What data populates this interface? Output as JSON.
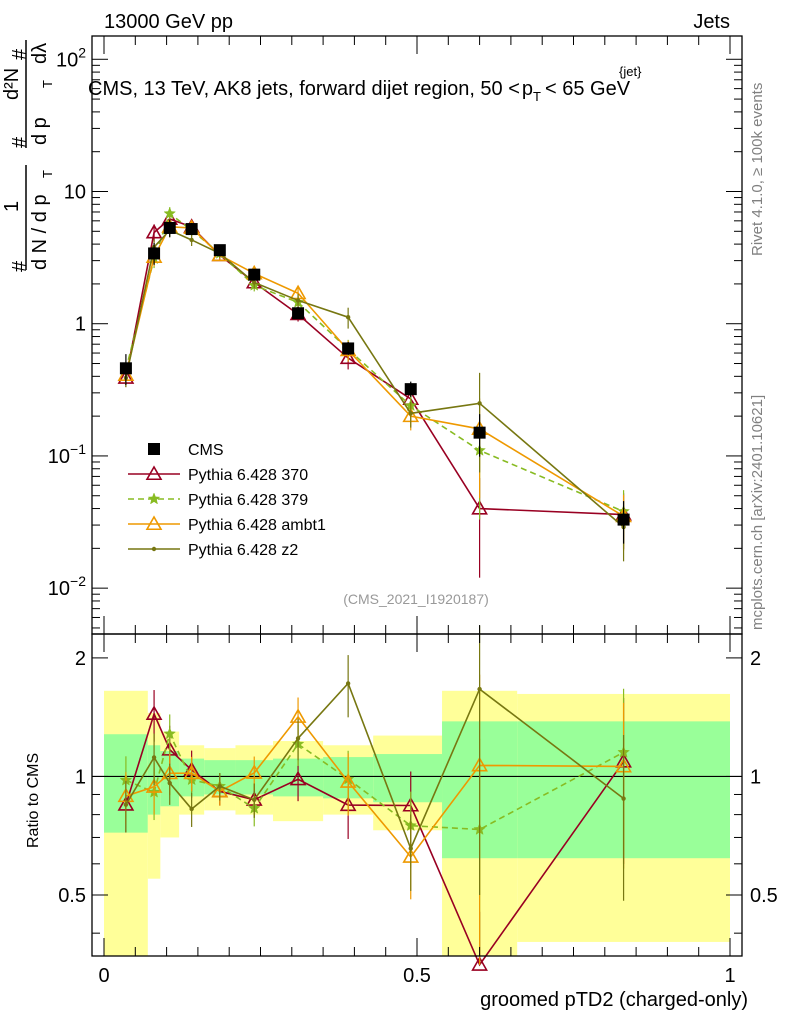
{
  "header": {
    "left": "13000 GeV pp",
    "right": "Jets"
  },
  "side_labels": {
    "rivet": "Rivet 4.1.0, ≥ 100k events",
    "mcplots": "mcplots.cern.ch [arXiv:2401.10621]"
  },
  "chart_data": {
    "type": "line",
    "title_main": "CMS, 13 TeV, AK8 jets, forward dijet region, 50 <",
    "title_p": "p",
    "title_sub": "T",
    "title_sup": "{jet}",
    "title_end": "< 65 GeV",
    "analysis_tag": "(CMS_2021_I1920187)",
    "xlabel": "groomed pTD2 (charged-only)",
    "ylabel_top": {
      "hash1": "#",
      "one": "1",
      "dN": "d N / d p",
      "T": "T",
      "hash2": "#",
      "d2N": "d²N",
      "dpT": "d p",
      "T2": "T",
      "hash3": "#",
      "dlambda": "dλ"
    },
    "ylabel_ratio": "Ratio to CMS",
    "xlim": [
      0,
      1
    ],
    "ylim_top": [
      0.0045,
      150
    ],
    "ylim_ratio": [
      0.35,
      2.3
    ],
    "x_ticks": [
      "0",
      "0.5",
      "1"
    ],
    "y_ticks_top": [
      {
        "v": 0.01,
        "base": "10",
        "exp": "−2"
      },
      {
        "v": 0.1,
        "base": "10",
        "exp": "−1"
      },
      {
        "v": 1,
        "base": "1",
        "exp": ""
      },
      {
        "v": 10,
        "base": "10",
        "exp": ""
      },
      {
        "v": 100,
        "base": "10",
        "exp": "2"
      }
    ],
    "y_ticks_ratio": [
      {
        "v": 0.5,
        "label": "0.5"
      },
      {
        "v": 1,
        "label": "1"
      },
      {
        "v": 2,
        "label": "2"
      }
    ],
    "bin_edges": [
      0,
      0.07,
      0.09,
      0.12,
      0.16,
      0.21,
      0.27,
      0.35,
      0.43,
      0.54,
      0.66,
      1.0
    ],
    "x": [
      0.035,
      0.08,
      0.105,
      0.14,
      0.185,
      0.24,
      0.31,
      0.39,
      0.49,
      0.6,
      0.83
    ],
    "cms": {
      "name": "CMS",
      "values": [
        0.46,
        3.4,
        5.3,
        5.2,
        3.6,
        2.35,
        1.2,
        0.65,
        0.32,
        0.15,
        0.033
      ],
      "band_green": [
        0.28,
        0.2,
        0.16,
        0.11,
        0.1,
        0.1,
        0.11,
        0.12,
        0.14,
        0.38,
        0.38
      ],
      "band_yellow": [
        0.65,
        0.45,
        0.3,
        0.2,
        0.18,
        0.2,
        0.23,
        0.2,
        0.27,
        0.65,
        0.62
      ]
    },
    "series": [
      {
        "name": "Pythia 6.428 370",
        "color": "#990022",
        "dash": "",
        "marker": "triangle-open",
        "values": [
          0.39,
          4.9,
          6.2,
          5.4,
          3.3,
          2.05,
          1.18,
          0.55,
          0.27,
          0.04,
          0.036
        ],
        "err": [
          0.15,
          0.15,
          0.15,
          0.12,
          0.08,
          0.1,
          0.12,
          0.18,
          0.22,
          0.7,
          0.45
        ]
      },
      {
        "name": "Pythia 6.428 379",
        "color": "#88bb22",
        "dash": "6,4",
        "marker": "star",
        "values": [
          0.45,
          3.1,
          6.8,
          5.1,
          3.4,
          1.95,
          1.45,
          0.64,
          0.24,
          0.11,
          0.038
        ],
        "err": [
          0.15,
          0.15,
          0.12,
          0.1,
          0.08,
          0.1,
          0.12,
          0.18,
          0.22,
          0.7,
          0.45
        ]
      },
      {
        "name": "Pythia 6.428 ambt1",
        "color": "#ee9900",
        "dash": "",
        "marker": "triangle-open",
        "values": [
          0.41,
          3.2,
          5.4,
          5.3,
          3.3,
          2.4,
          1.7,
          0.63,
          0.2,
          0.16,
          0.035
        ],
        "err": [
          0.15,
          0.15,
          0.12,
          0.1,
          0.08,
          0.1,
          0.12,
          0.18,
          0.22,
          0.7,
          0.45
        ]
      },
      {
        "name": "Pythia 6.428 z2",
        "color": "#777711",
        "dash": "",
        "marker": "dot",
        "values": [
          0.39,
          3.8,
          5.1,
          4.3,
          3.4,
          2.05,
          1.5,
          1.12,
          0.21,
          0.25,
          0.029
        ],
        "err": [
          0.15,
          0.15,
          0.12,
          0.1,
          0.08,
          0.1,
          0.12,
          0.18,
          0.22,
          0.7,
          0.45
        ]
      }
    ]
  }
}
